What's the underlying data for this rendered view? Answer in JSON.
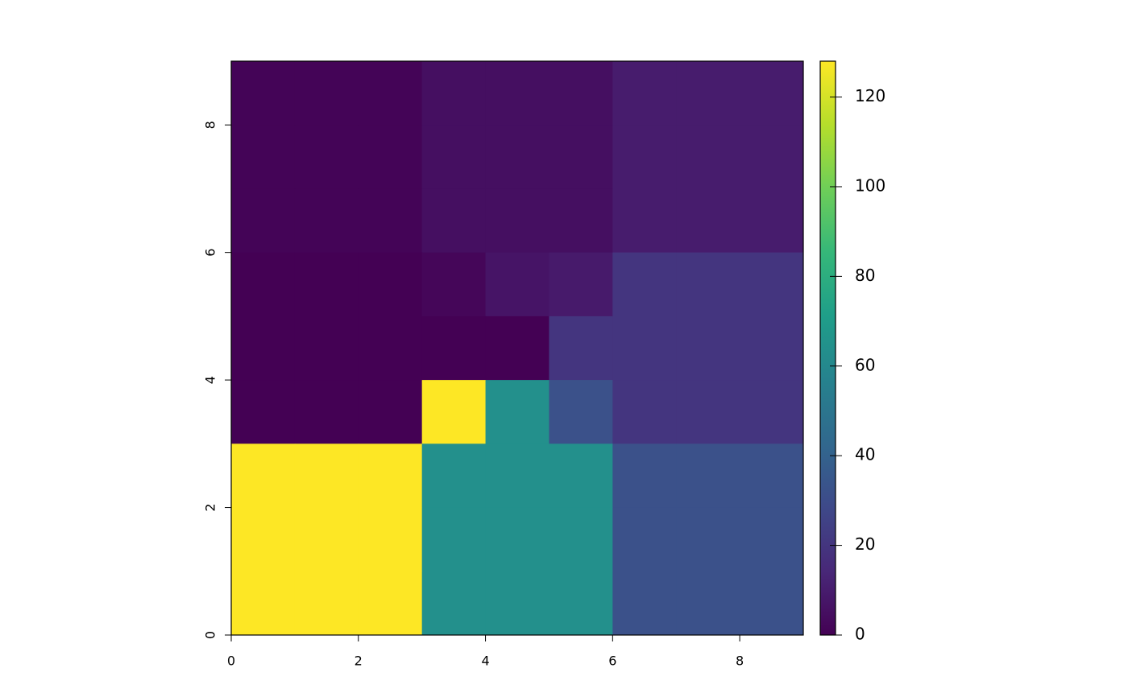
{
  "chart_data": {
    "type": "raster",
    "xlim": [
      0,
      9
    ],
    "ylim": [
      0,
      9
    ],
    "xticks": [
      0,
      2,
      4,
      6,
      8
    ],
    "yticks": [
      0,
      2,
      4,
      6,
      8
    ],
    "z": [
      [
        1,
        1,
        1,
        5,
        5,
        5,
        10,
        10,
        10
      ],
      [
        1,
        1,
        1,
        5,
        5,
        5,
        10,
        10,
        10
      ],
      [
        1,
        1,
        1,
        5,
        5,
        5,
        10,
        10,
        10
      ],
      [
        0,
        0,
        0,
        2,
        7,
        9,
        20,
        20,
        20
      ],
      [
        0,
        0,
        0,
        0,
        0,
        20,
        20,
        20,
        20
      ],
      [
        0,
        0,
        0,
        128,
        64,
        32,
        20,
        20,
        20
      ],
      [
        128,
        128,
        128,
        64,
        64,
        64,
        32,
        32,
        32
      ],
      [
        128,
        128,
        128,
        64,
        64,
        64,
        32,
        32,
        32
      ],
      [
        128,
        128,
        128,
        64,
        64,
        64,
        32,
        32,
        32
      ]
    ],
    "zlim": [
      0,
      128
    ],
    "zticks": [
      0,
      20,
      40,
      60,
      80,
      100,
      120
    ],
    "colorscale": [
      "#440154",
      "#482878",
      "#3e4989",
      "#31688e",
      "#26828e",
      "#1f9e89",
      "#35b779",
      "#6ece58",
      "#b5de2b",
      "#fde725"
    ]
  }
}
